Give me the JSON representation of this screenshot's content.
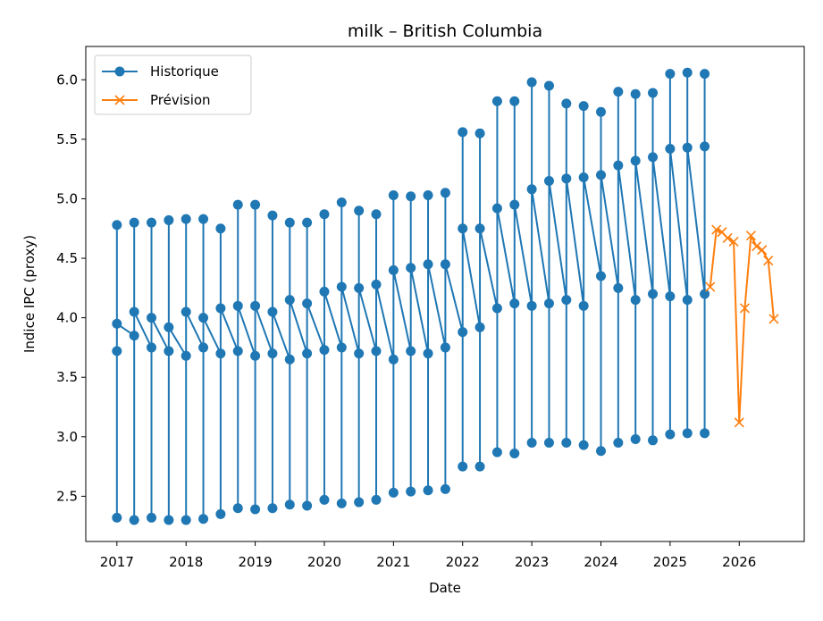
{
  "chart_data": {
    "type": "line",
    "title": "milk – British Columbia",
    "xlabel": "Date",
    "ylabel": "Indice IPC (proxy)",
    "xlim": [
      2016.55,
      2026.94
    ],
    "ylim": [
      2.12,
      6.28
    ],
    "xticks": [
      2017,
      2018,
      2019,
      2020,
      2021,
      2022,
      2023,
      2024,
      2025,
      2026
    ],
    "yticks": [
      2.5,
      {
        "value": 3,
        "label": "3.0"
      },
      3.5,
      {
        "value": 4,
        "label": "4.0"
      },
      4.5,
      {
        "value": 5,
        "label": "5.0"
      },
      5.5,
      {
        "value": 6,
        "label": "6.0"
      }
    ],
    "grid": false,
    "legend": "upper left",
    "series": [
      {
        "name": "Historique",
        "color": "#1f77b4",
        "marker": "o",
        "x": [
          2017,
          2017,
          2017,
          2017,
          2017.25,
          2017.25,
          2017.25,
          2017.25,
          2017.5,
          2017.5,
          2017.5,
          2017.5,
          2017.75,
          2017.75,
          2017.75,
          2017.75,
          2018,
          2018,
          2018,
          2018,
          2018.25,
          2018.25,
          2018.25,
          2018.25,
          2018.5,
          2018.5,
          2018.5,
          2018.5,
          2018.75,
          2018.75,
          2018.75,
          2018.75,
          2019,
          2019,
          2019,
          2019,
          2019.25,
          2019.25,
          2019.25,
          2019.25,
          2019.5,
          2019.5,
          2019.5,
          2019.5,
          2019.75,
          2019.75,
          2019.75,
          2019.75,
          2020,
          2020,
          2020,
          2020,
          2020.25,
          2020.25,
          2020.25,
          2020.25,
          2020.5,
          2020.5,
          2020.5,
          2020.5,
          2020.75,
          2020.75,
          2020.75,
          2020.75,
          2021,
          2021,
          2021,
          2021,
          2021.25,
          2021.25,
          2021.25,
          2021.25,
          2021.5,
          2021.5,
          2021.5,
          2021.5,
          2021.75,
          2021.75,
          2021.75,
          2021.75,
          2022,
          2022,
          2022,
          2022,
          2022.25,
          2022.25,
          2022.25,
          2022.25,
          2022.5,
          2022.5,
          2022.5,
          2022.5,
          2022.75,
          2022.75,
          2022.75,
          2022.75,
          2023,
          2023,
          2023,
          2023,
          2023.25,
          2023.25,
          2023.25,
          2023.25,
          2023.5,
          2023.5,
          2023.5,
          2023.5,
          2023.75,
          2023.75,
          2023.75,
          2023.75,
          2024,
          2024,
          2024,
          2024,
          2024.25,
          2024.25,
          2024.25,
          2024.25,
          2024.5,
          2024.5,
          2024.5,
          2024.5,
          2024.75,
          2024.75,
          2024.75,
          2024.75,
          2025,
          2025,
          2025,
          2025,
          2025.25,
          2025.25,
          2025.25,
          2025.25,
          2025.5,
          2025.5,
          2025.5,
          2025.5
        ],
        "values": [
          3.72,
          4.78,
          2.32,
          3.95,
          3.85,
          4.8,
          2.3,
          4.05,
          3.75,
          4.8,
          2.32,
          4.0,
          3.72,
          4.82,
          2.3,
          3.92,
          3.68,
          4.83,
          2.3,
          4.05,
          3.75,
          4.83,
          2.31,
          4.0,
          3.7,
          4.75,
          2.35,
          4.08,
          3.72,
          4.95,
          2.4,
          4.1,
          3.68,
          4.95,
          2.39,
          4.1,
          3.7,
          4.86,
          2.4,
          4.05,
          3.65,
          4.8,
          2.43,
          4.15,
          3.7,
          4.8,
          2.42,
          4.12,
          3.73,
          4.87,
          2.47,
          4.22,
          3.75,
          4.97,
          2.44,
          4.26,
          3.7,
          4.9,
          2.45,
          4.25,
          3.72,
          4.87,
          2.47,
          4.28,
          3.65,
          5.03,
          2.53,
          4.4,
          3.72,
          5.02,
          2.54,
          4.42,
          3.7,
          5.03,
          2.55,
          4.45,
          3.75,
          5.05,
          2.56,
          4.45,
          3.88,
          5.56,
          2.75,
          4.75,
          3.92,
          5.55,
          2.75,
          4.75,
          4.08,
          5.82,
          2.87,
          4.92,
          4.12,
          5.82,
          2.86,
          4.95,
          4.1,
          5.98,
          2.95,
          5.08,
          4.12,
          5.95,
          2.95,
          5.15,
          4.15,
          5.8,
          2.95,
          5.17,
          4.1,
          5.78,
          2.93,
          5.18,
          4.35,
          5.73,
          2.88,
          5.2,
          4.25,
          5.9,
          2.95,
          5.28,
          4.15,
          5.88,
          2.98,
          5.32,
          4.2,
          5.89,
          2.97,
          5.35,
          4.18,
          6.05,
          3.02,
          5.42,
          4.15,
          6.06,
          3.03,
          5.43,
          4.2,
          6.05,
          3.03,
          5.44
        ]
      },
      {
        "name": "Prévision",
        "color": "#ff7f0e",
        "marker": "x",
        "x": [
          2025.58,
          2025.67,
          2025.75,
          2025.83,
          2025.92,
          2026.0,
          2026.08,
          2026.17,
          2026.25,
          2026.33,
          2026.42,
          2026.5
        ],
        "values": [
          4.26,
          4.74,
          4.72,
          4.67,
          4.64,
          3.12,
          4.08,
          4.69,
          4.6,
          4.57,
          4.48,
          3.99
        ]
      }
    ]
  }
}
